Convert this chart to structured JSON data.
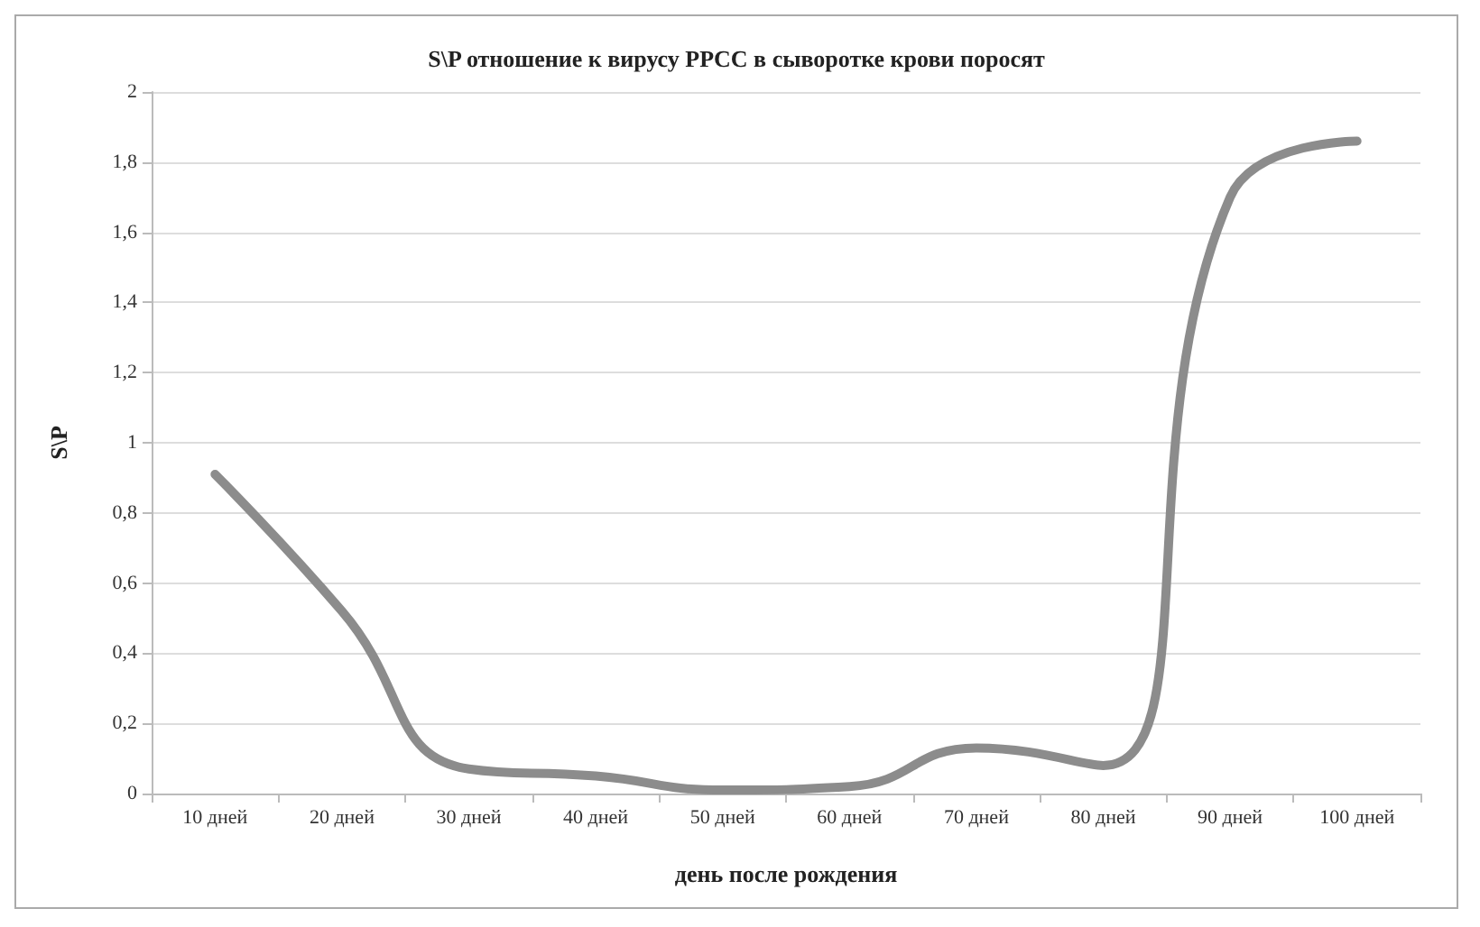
{
  "chart_data": {
    "type": "line",
    "title": "S\\P отношение к вирусу PPCC в сыворотке крови поросят",
    "xlabel": "день после рождения",
    "ylabel": "S\\P",
    "categories": [
      "10 дней",
      "20 дней",
      "30 дней",
      "40 дней",
      "50 дней",
      "60 дней",
      "70 дней",
      "80 дней",
      "90 дней",
      "100 дней"
    ],
    "series": [
      {
        "color": "#8c8c8c",
        "values": [
          0.91,
          0.52,
          0.07,
          0.05,
          0.01,
          0.02,
          0.13,
          0.08,
          1.7,
          1.86
        ]
      }
    ],
    "ylim": [
      0,
      2
    ],
    "yticks": [
      0,
      {
        "value": 0.2,
        "label": "0,2"
      },
      {
        "value": 0.4,
        "label": "0,4"
      },
      {
        "value": 0.6,
        "label": "0,6"
      },
      {
        "value": 0.8,
        "label": "0,8"
      },
      1,
      {
        "value": 1.2,
        "label": "1,2"
      },
      {
        "value": 1.4,
        "label": "1,4"
      },
      {
        "value": 1.6,
        "label": "1,6"
      },
      {
        "value": 1.8,
        "label": "1,8"
      },
      2
    ],
    "grid": "y",
    "marker": "none",
    "line_style": "solid"
  }
}
